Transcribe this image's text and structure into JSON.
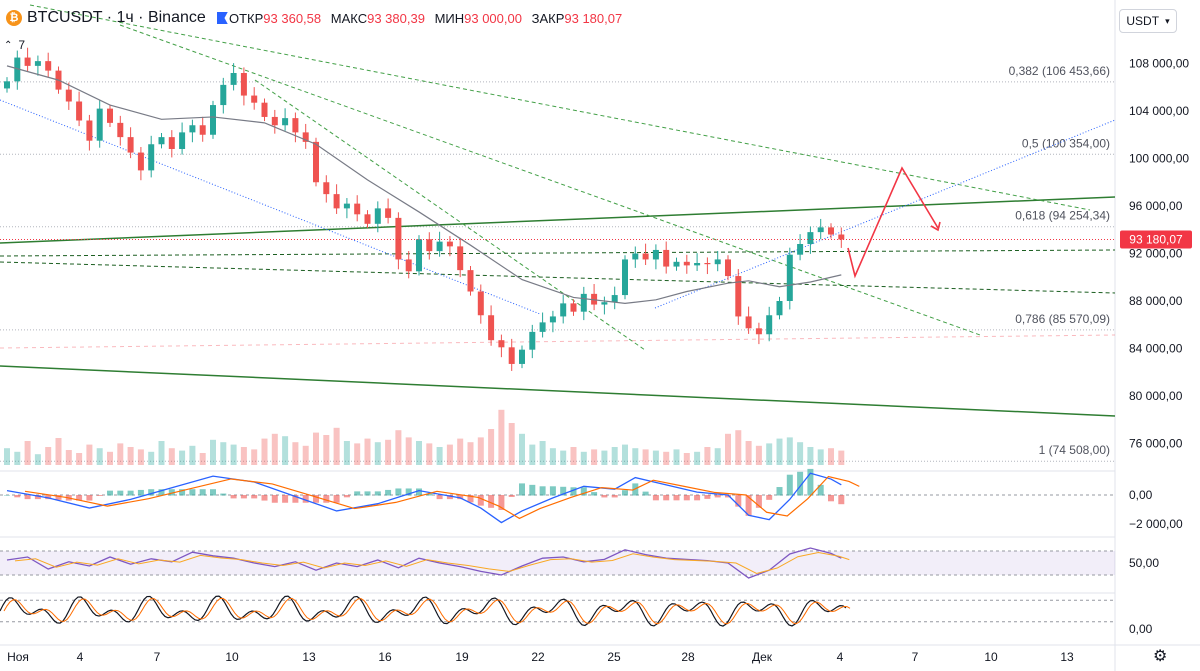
{
  "header": {
    "symbol": "BTCUSDT · 1ч · Binance",
    "logo_letter": "₿",
    "open_label": "ОТКР",
    "open_value": "93 360,58",
    "high_label": "МАКС",
    "high_value": "93 380,39",
    "low_label": "МИН",
    "low_value": "93 000,00",
    "close_label": "ЗАКР",
    "close_value": "93 180,07",
    "indicator_count": "7",
    "currency": "USDT"
  },
  "colors": {
    "up": "#26a69a",
    "down": "#ef5350",
    "green_line": "#2e7d32",
    "dashed_green": "#43a047",
    "blue_dot": "#2962ff",
    "ma": "#787b86",
    "arrow": "#f23645",
    "price_tag": "#f23645"
  },
  "chart_data": [
    {
      "type": "candlestick",
      "title": "BTCUSDT · 1ч · Binance",
      "ylim": [
        72000,
        112000
      ],
      "price_ticks": [
        "108 000,00",
        "104 000,00",
        "100 000,00",
        "96 000,00",
        "92 000,00",
        "88 000,00",
        "84 000,00",
        "80 000,00",
        "76 000,00"
      ],
      "price_tick_values": [
        108000,
        104000,
        100000,
        96000,
        92000,
        88000,
        84000,
        80000,
        76000
      ],
      "x_labels": [
        "Ноя",
        "4",
        "7",
        "10",
        "13",
        "16",
        "19",
        "22",
        "25",
        "28",
        "Дек",
        "4",
        "7",
        "10",
        "13"
      ],
      "last_price": 93180.07,
      "last_price_label": "93 180,07",
      "fib_levels": [
        {
          "label": "0,382 (106 453,66)",
          "value": 106453.66
        },
        {
          "label": "0,5 (100 354,00)",
          "value": 100354.0
        },
        {
          "label": "0,618 (94 254,34)",
          "value": 94254.34
        },
        {
          "label": "0,786 (85 570,09)",
          "value": 85570.09
        },
        {
          "label": "1 (74 508,00)",
          "value": 74508.0
        }
      ],
      "close_path": [
        [
          0,
          106500
        ],
        [
          1,
          108500
        ],
        [
          2,
          107800
        ],
        [
          3,
          108200
        ],
        [
          4,
          107400
        ],
        [
          5,
          105800
        ],
        [
          6,
          104800
        ],
        [
          7,
          103200
        ],
        [
          8,
          101500
        ],
        [
          9,
          104200
        ],
        [
          10,
          103000
        ],
        [
          11,
          101800
        ],
        [
          12,
          100500
        ],
        [
          13,
          99000
        ],
        [
          14,
          101200
        ],
        [
          15,
          101800
        ],
        [
          16,
          100800
        ],
        [
          17,
          102200
        ],
        [
          18,
          102800
        ],
        [
          19,
          102000
        ],
        [
          20,
          104500
        ],
        [
          21,
          106200
        ],
        [
          22,
          107200
        ],
        [
          23,
          105300
        ],
        [
          24,
          104700
        ],
        [
          25,
          103500
        ],
        [
          26,
          102800
        ],
        [
          27,
          103400
        ],
        [
          28,
          102200
        ],
        [
          29,
          101400
        ],
        [
          30,
          98000
        ],
        [
          31,
          97000
        ],
        [
          32,
          95800
        ],
        [
          33,
          96200
        ],
        [
          34,
          95300
        ],
        [
          35,
          94500
        ],
        [
          36,
          95800
        ],
        [
          37,
          95000
        ],
        [
          38,
          91500
        ],
        [
          39,
          90500
        ],
        [
          40,
          93200
        ],
        [
          41,
          92200
        ],
        [
          42,
          93000
        ],
        [
          43,
          92600
        ],
        [
          44,
          90600
        ],
        [
          45,
          88800
        ],
        [
          46,
          86800
        ],
        [
          47,
          84700
        ],
        [
          48,
          84100
        ],
        [
          49,
          82700
        ],
        [
          50,
          83900
        ],
        [
          51,
          85400
        ],
        [
          52,
          86200
        ],
        [
          53,
          86700
        ],
        [
          54,
          87800
        ],
        [
          55,
          87100
        ],
        [
          56,
          88600
        ],
        [
          57,
          87700
        ],
        [
          58,
          87900
        ],
        [
          59,
          88500
        ],
        [
          60,
          91500
        ],
        [
          61,
          92000
        ],
        [
          62,
          91500
        ],
        [
          63,
          92300
        ],
        [
          64,
          90900
        ],
        [
          65,
          91300
        ],
        [
          66,
          91000
        ],
        [
          67,
          91200
        ],
        [
          68,
          91100
        ],
        [
          69,
          91500
        ],
        [
          70,
          90100
        ],
        [
          71,
          86700
        ],
        [
          72,
          85700
        ],
        [
          73,
          85200
        ],
        [
          74,
          86800
        ],
        [
          75,
          88000
        ],
        [
          76,
          91900
        ],
        [
          77,
          92800
        ],
        [
          78,
          93800
        ],
        [
          79,
          94200
        ],
        [
          80,
          93600
        ],
        [
          81,
          93180
        ]
      ],
      "ma_path": [
        [
          0,
          107800
        ],
        [
          5,
          106600
        ],
        [
          10,
          104500
        ],
        [
          15,
          103300
        ],
        [
          20,
          103500
        ],
        [
          25,
          103000
        ],
        [
          30,
          101200
        ],
        [
          35,
          98200
        ],
        [
          40,
          95500
        ],
        [
          45,
          92700
        ],
        [
          50,
          89800
        ],
        [
          55,
          88300
        ],
        [
          60,
          87800
        ],
        [
          63,
          88100
        ],
        [
          66,
          88800
        ],
        [
          70,
          89500
        ],
        [
          72,
          89700
        ],
        [
          75,
          89200
        ],
        [
          78,
          89600
        ],
        [
          81,
          90200
        ]
      ],
      "volume": [
        28,
        22,
        40,
        18,
        30,
        45,
        25,
        20,
        34,
        28,
        22,
        36,
        30,
        26,
        22,
        40,
        28,
        24,
        32,
        20,
        42,
        38,
        34,
        30,
        26,
        44,
        52,
        48,
        38,
        32,
        54,
        50,
        62,
        40,
        36,
        44,
        38,
        42,
        58,
        46,
        40,
        36,
        30,
        34,
        44,
        38,
        46,
        60,
        92,
        70,
        52,
        34,
        40,
        28,
        24,
        30,
        22,
        26,
        24,
        30,
        34,
        28,
        26,
        24,
        22,
        26,
        20,
        22,
        30,
        28,
        52,
        58,
        40,
        32,
        36,
        44,
        46,
        38,
        30,
        26,
        28,
        24
      ]
    },
    {
      "type": "oscillator",
      "name": "MACD",
      "ticks": [
        "0,00",
        "−2 000,00"
      ],
      "tick_values": [
        0,
        -2000
      ],
      "ylim": [
        -2600,
        2100
      ],
      "values": [
        [
          0,
          300
        ],
        [
          4,
          -200
        ],
        [
          8,
          -900
        ],
        [
          12,
          -300
        ],
        [
          16,
          500
        ],
        [
          20,
          1300
        ],
        [
          24,
          900
        ],
        [
          28,
          -100
        ],
        [
          32,
          -1100
        ],
        [
          36,
          -600
        ],
        [
          40,
          300
        ],
        [
          44,
          -200
        ],
        [
          46,
          -900
        ],
        [
          48,
          -1900
        ],
        [
          50,
          -1100
        ],
        [
          53,
          -200
        ],
        [
          56,
          600
        ],
        [
          59,
          400
        ],
        [
          61,
          1200
        ],
        [
          64,
          700
        ],
        [
          67,
          200
        ],
        [
          70,
          0
        ],
        [
          72,
          -1400
        ],
        [
          74,
          -1700
        ],
        [
          76,
          -300
        ],
        [
          78,
          1500
        ],
        [
          80,
          1100
        ],
        [
          81,
          700
        ]
      ]
    },
    {
      "type": "oscillator",
      "name": "RSI",
      "ticks": [
        "50,00"
      ],
      "tick_values": [
        50
      ],
      "ylim": [
        20,
        90
      ],
      "band": [
        30,
        70
      ],
      "values": [
        [
          0,
          55
        ],
        [
          2,
          60
        ],
        [
          4,
          40
        ],
        [
          6,
          52
        ],
        [
          8,
          45
        ],
        [
          10,
          60
        ],
        [
          12,
          48
        ],
        [
          14,
          57
        ],
        [
          16,
          52
        ],
        [
          18,
          68
        ],
        [
          20,
          62
        ],
        [
          22,
          58
        ],
        [
          24,
          50
        ],
        [
          26,
          44
        ],
        [
          28,
          52
        ],
        [
          30,
          38
        ],
        [
          32,
          50
        ],
        [
          34,
          44
        ],
        [
          36,
          55
        ],
        [
          38,
          42
        ],
        [
          40,
          58
        ],
        [
          42,
          50
        ],
        [
          44,
          44
        ],
        [
          46,
          36
        ],
        [
          48,
          30
        ],
        [
          50,
          45
        ],
        [
          52,
          58
        ],
        [
          54,
          60
        ],
        [
          56,
          52
        ],
        [
          58,
          56
        ],
        [
          60,
          72
        ],
        [
          62,
          64
        ],
        [
          64,
          58
        ],
        [
          66,
          56
        ],
        [
          68,
          54
        ],
        [
          70,
          50
        ],
        [
          72,
          25
        ],
        [
          74,
          38
        ],
        [
          76,
          65
        ],
        [
          78,
          75
        ],
        [
          80,
          66
        ],
        [
          81,
          58
        ]
      ]
    },
    {
      "type": "oscillator",
      "name": "Stochastic",
      "ticks": [
        "0,00"
      ],
      "tick_values": [
        0
      ],
      "ylim": [
        -20,
        120
      ],
      "band": [
        20,
        80
      ]
    }
  ]
}
